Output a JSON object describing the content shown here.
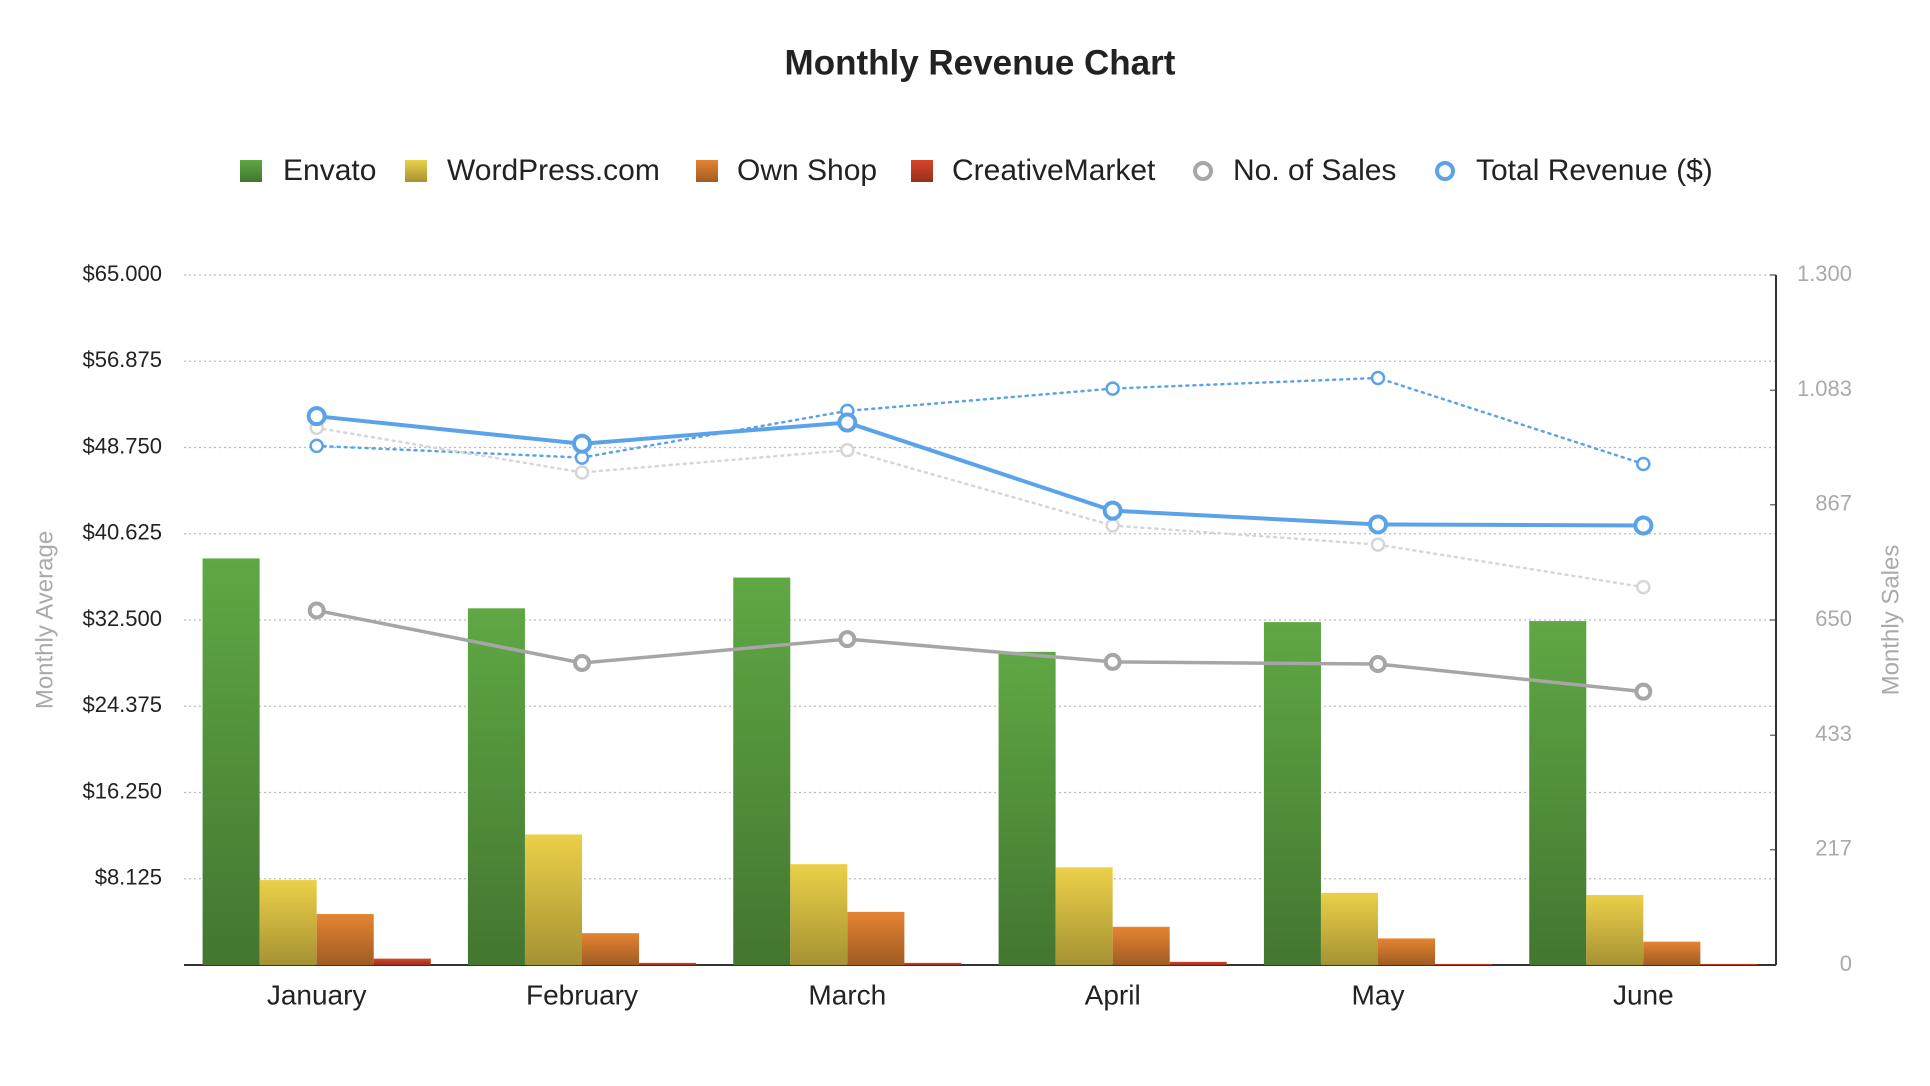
{
  "chart_data": {
    "type": "bar",
    "title": "Monthly Revenue Chart",
    "y_label": "Monthly Average",
    "y2_label": "Monthly Sales",
    "categories": [
      "January",
      "February",
      "March",
      "April",
      "May",
      "June"
    ],
    "series": [
      {
        "name": "Envato",
        "color": "#5fa844",
        "type": "bar",
        "values": [
          38300,
          33600,
          36500,
          29500,
          32300,
          32400
        ]
      },
      {
        "name": "WordPress.com",
        "color": "#ecd049",
        "type": "bar",
        "values": [
          8000,
          12300,
          9500,
          9200,
          6800,
          6600
        ]
      },
      {
        "name": "Own Shop",
        "color": "#e58432",
        "type": "bar",
        "values": [
          4800,
          3000,
          5000,
          3600,
          2500,
          2200
        ]
      },
      {
        "name": "CreativeMarket",
        "color": "#d8442a",
        "type": "bar",
        "values": [
          600,
          200,
          200,
          300,
          100,
          100
        ]
      },
      {
        "name": "No. of Sales",
        "color": "#a6a6a6",
        "type": "line",
        "axis": "y2",
        "values": [
          668,
          569,
          614,
          571,
          567,
          515
        ]
      },
      {
        "name": "Total Revenue ($)",
        "color": "#5ba3e8",
        "type": "line",
        "values": [
          51700,
          49100,
          51100,
          42800,
          41500,
          41400
        ]
      },
      {
        "color": "#5ba3e8",
        "type": "line",
        "dashed": true,
        "values": [
          48900,
          47800,
          52200,
          54300,
          55300,
          47200
        ]
      },
      {
        "color": "#d6d6d6",
        "type": "line",
        "dashed": true,
        "values": [
          50600,
          46400,
          48500,
          41400,
          39600,
          35600
        ]
      }
    ],
    "ylim": [
      0,
      65000
    ],
    "yticks": [
      {
        "value": 8125,
        "label": "$8.125"
      },
      {
        "value": 16250,
        "label": "$16.250"
      },
      {
        "value": 24375,
        "label": "$24.375"
      },
      {
        "value": 32500,
        "label": "$32.500"
      },
      {
        "value": 40625,
        "label": "$40.625"
      },
      {
        "value": 48750,
        "label": "$48.750"
      },
      {
        "value": 56875,
        "label": "$56.875"
      },
      {
        "value": 65000,
        "label": "$65.000"
      }
    ],
    "y2lim": [
      0,
      1300
    ],
    "y2ticks": [
      0,
      217,
      433,
      650,
      867,
      {
        "value": 1083,
        "label": "1.083"
      },
      {
        "value": 1300,
        "label": "1.300"
      }
    ],
    "grid": true,
    "legend": "top"
  }
}
